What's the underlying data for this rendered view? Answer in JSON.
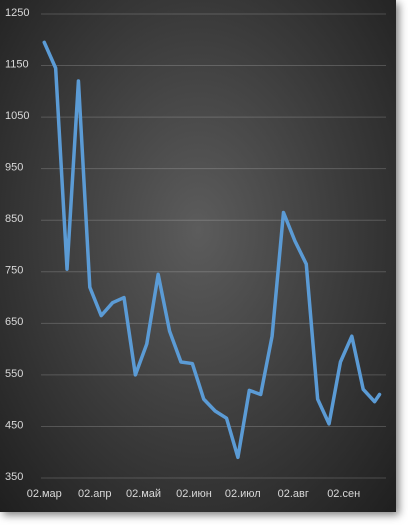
{
  "chart_data": {
    "type": "line",
    "x": [
      0,
      7,
      14,
      21,
      28,
      35,
      42,
      49,
      56,
      63,
      70,
      77,
      84,
      91,
      98,
      105,
      112,
      119,
      126,
      133,
      140,
      147,
      154,
      161,
      168,
      175,
      182,
      189,
      196,
      203,
      206
    ],
    "series": [
      {
        "color": "#5b9bd5",
        "values": [
          1195,
          1145,
          755,
          1120,
          720,
          665,
          690,
          700,
          550,
          610,
          745,
          635,
          575,
          572,
          503,
          480,
          466,
          390,
          520,
          512,
          625,
          865,
          810,
          765,
          503,
          455,
          575,
          625,
          522,
          498,
          512
        ]
      }
    ],
    "xlim": [
      -2,
      210
    ],
    "xticks": [
      {
        "value": 0,
        "label": "02.мар"
      },
      {
        "value": 31,
        "label": "02.апр"
      },
      {
        "value": 61,
        "label": "02.май"
      },
      {
        "value": 92,
        "label": "02.июн"
      },
      {
        "value": 122,
        "label": "02.июл"
      },
      {
        "value": 153,
        "label": "02.авг"
      },
      {
        "value": 184,
        "label": "02.сен"
      }
    ],
    "ylim": [
      350,
      1250
    ],
    "yticks": [
      350,
      450,
      550,
      650,
      750,
      850,
      950,
      1050,
      1150,
      1250
    ],
    "grid": true
  }
}
